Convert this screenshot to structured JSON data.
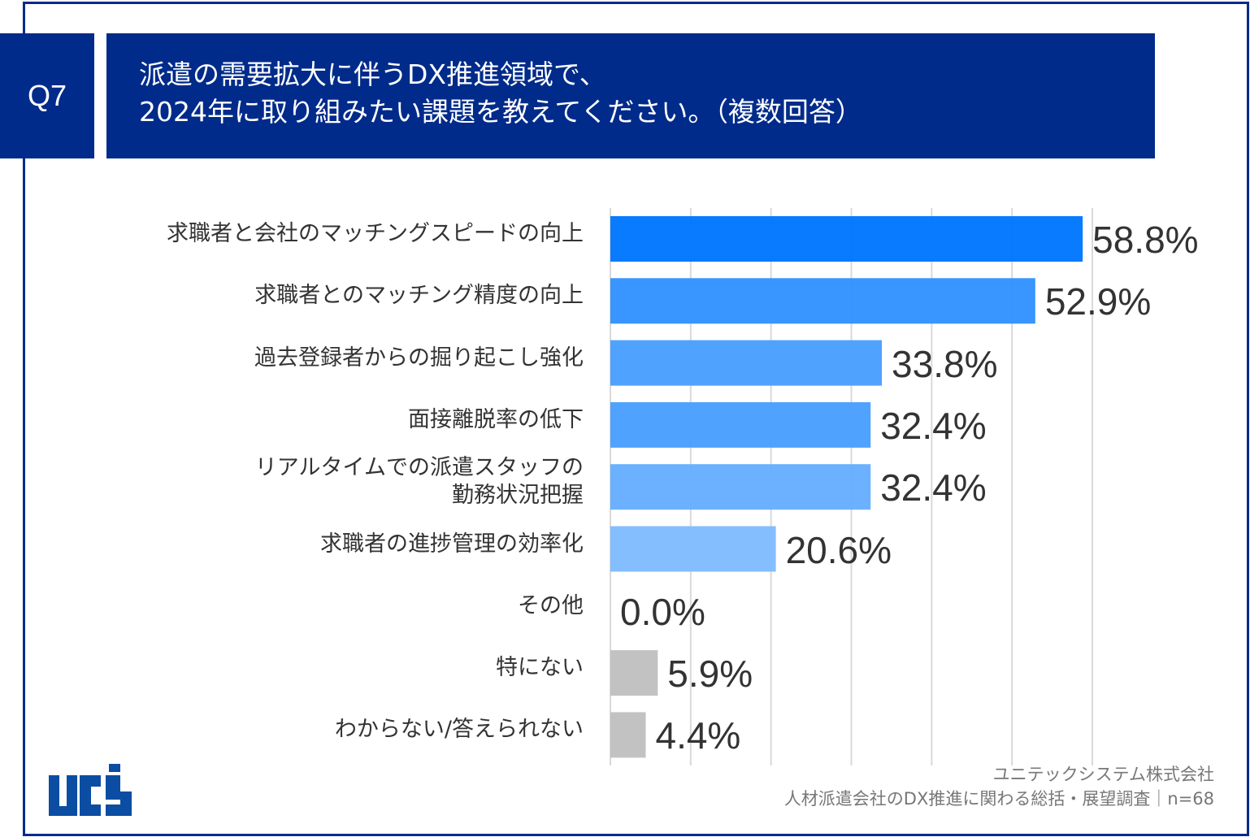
{
  "header": {
    "question_no": "Q7",
    "title_line1": "派遣の需要拡大に伴うDX推進領域で、",
    "title_line2": "2024年に取り組みたい課題を教えてください。（複数回答）"
  },
  "footer": {
    "company": "ユニテックシステム株式会社",
    "survey": "人材派遣会社のDX推進に関わる総括・展望調査｜n=68"
  },
  "logo": {
    "text": "ucs"
  },
  "colors": {
    "frame": "#002B8A",
    "gridline": "#d9d9d9",
    "gray_bar": "#C0C0C0"
  },
  "chart_data": {
    "type": "bar",
    "orientation": "horizontal",
    "categories": [
      [
        "求職者と会社のマッチングスピードの向上"
      ],
      [
        "求職者とのマッチング精度の向上"
      ],
      [
        "過去登録者からの掘り起こし強化"
      ],
      [
        "面接離脱率の低下"
      ],
      [
        "リアルタイムでの派遣スタッフの",
        "勤務状況把握"
      ],
      [
        "求職者の進捗管理の効率化"
      ],
      [
        "その他"
      ],
      [
        "特にない"
      ],
      [
        "わからない/答えられない"
      ]
    ],
    "values": [
      58.8,
      52.9,
      33.8,
      32.4,
      32.4,
      20.6,
      0.0,
      5.9,
      4.4
    ],
    "value_labels": [
      "58.8%",
      "52.9%",
      "33.8%",
      "32.4%",
      "32.4%",
      "20.6%",
      "0.0%",
      "5.9%",
      "4.4%"
    ],
    "bar_colors": [
      "#0077FF",
      "#3392FF",
      "#4A9FFF",
      "#4A9FFF",
      "#66AEFF",
      "#80BCFF",
      "#80BCFF",
      "#C0C0C0",
      "#C0C0C0"
    ],
    "xlim": [
      0,
      60
    ],
    "grid": true,
    "gridline_step": 10,
    "x_tick_labels_shown": false,
    "legend": "none"
  }
}
